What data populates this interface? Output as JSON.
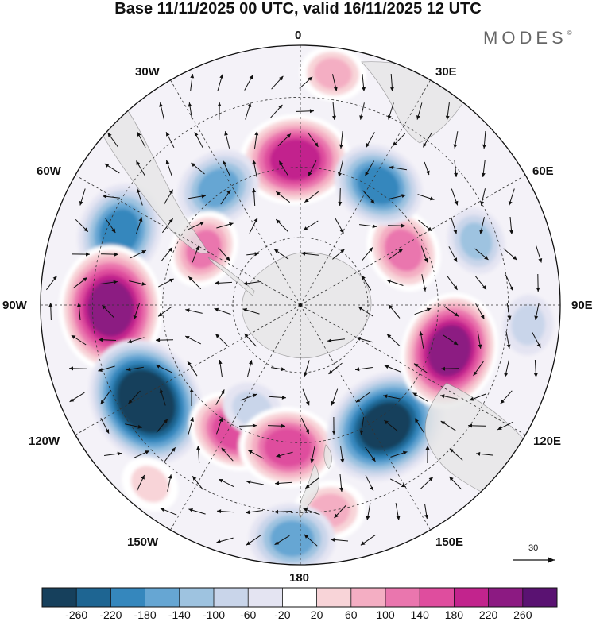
{
  "title": "Base 11/11/2025 00 UTC, valid 16/11/2025 12 UTC",
  "brand": "MODES",
  "brand_mark": "©",
  "longitude_labels": {
    "lon_0": "0",
    "lon_30e": "30E",
    "lon_60e": "60E",
    "lon_90e": "90E",
    "lon_120e": "120E",
    "lon_150e": "150E",
    "lon_180": "180",
    "lon_150w": "150W",
    "lon_120w": "120W",
    "lon_90w": "90W",
    "lon_60w": "60W",
    "lon_30w": "30W"
  },
  "reference_vector": {
    "label": "30"
  },
  "colorbar": {
    "colors": [
      "#16405c",
      "#1e6592",
      "#3587bd",
      "#66a6d3",
      "#9ec3e0",
      "#c9d5ea",
      "#e4e4f2",
      "#ffffff",
      "#f8d4d8",
      "#f4aec3",
      "#ea76ae",
      "#df4d9e",
      "#c2248d",
      "#8c1a82",
      "#5a1272"
    ],
    "labels": [
      "-260",
      "-220",
      "-180",
      "-140",
      "-100",
      "-60",
      "-20",
      "20",
      "60",
      "100",
      "140",
      "180",
      "220",
      "260"
    ]
  },
  "map_data": {
    "projection": "south-polar-stereographic",
    "field": "geopotential height anomaly with wind vectors",
    "land_color": "#e6e6e6",
    "anomalies": [
      {
        "name": "positive-anomaly-south-atlantic",
        "lon": -2,
        "colat": 0.56,
        "val": 220
      },
      {
        "name": "negative-anomaly-atlantic-west",
        "lon": -35,
        "colat": 0.55,
        "val": -140
      },
      {
        "name": "negative-anomaly-south-america",
        "lon": -68,
        "colat": 0.75,
        "val": -180
      },
      {
        "name": "positive-anomaly-drake-passage",
        "lon": -60,
        "colat": 0.43,
        "val": 120
      },
      {
        "name": "positive-anomaly-east-pacific",
        "lon": -91,
        "colat": 0.73,
        "val": 270
      },
      {
        "name": "negative-anomaly-southeast-pacific",
        "lon": -122,
        "colat": 0.7,
        "val": -280
      },
      {
        "name": "positive-anomaly-south-pacific",
        "lon": -152,
        "colat": 0.55,
        "val": 160
      },
      {
        "name": "negative-anomaly-south-pacific-small",
        "lon": -155,
        "colat": 0.44,
        "val": -60
      },
      {
        "name": "positive-anomaly-new-zealand",
        "lon": -175,
        "colat": 0.55,
        "val": 180
      },
      {
        "name": "negative-anomaly-australia-south",
        "lon": 145,
        "colat": 0.57,
        "val": -260
      },
      {
        "name": "positive-anomaly-indian-ocean-east",
        "lon": 107,
        "colat": 0.6,
        "val": 240
      },
      {
        "name": "positive-anomaly-indian-ocean",
        "lon": 62,
        "colat": 0.45,
        "val": 140
      },
      {
        "name": "negative-anomaly-indian-ocean",
        "lon": 33,
        "colat": 0.55,
        "val": -160
      },
      {
        "name": "negative-anomaly-indian-ocean-far",
        "lon": 70,
        "colat": 0.72,
        "val": -80
      },
      {
        "name": "positive-anomaly-south-africa",
        "lon": 8,
        "colat": 0.9,
        "val": 80
      },
      {
        "name": "negative-anomaly-north-indian",
        "lon": 95,
        "colat": 0.88,
        "val": -60
      },
      {
        "name": "positive-anomaly-new-zealand-north",
        "lon": 172,
        "colat": 0.8,
        "val": 100
      },
      {
        "name": "negative-anomaly-far-south-pacific",
        "lon": -178,
        "colat": 0.9,
        "val": -140
      },
      {
        "name": "positive-anomaly-far-west-pacific",
        "lon": -140,
        "colat": 0.9,
        "val": 60
      }
    ]
  }
}
